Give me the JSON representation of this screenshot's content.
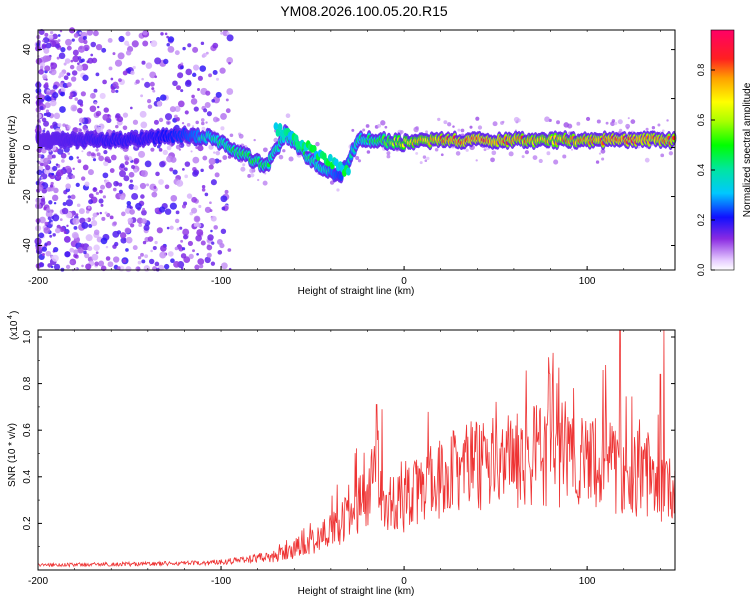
{
  "title": "YM08.2026.100.05.20.R15",
  "chart_data": [
    {
      "type": "heatmap",
      "xlabel": "Height of straight line (km)",
      "ylabel": "Frequency (Hz)",
      "xlim": [
        -200,
        148
      ],
      "ylim": [
        -50,
        48
      ],
      "x_ticks": [
        -200,
        -100,
        0,
        100
      ],
      "x_tick_labels": [
        "-200",
        "-100",
        "0",
        "100"
      ],
      "y_ticks": [
        40,
        20,
        0,
        -20,
        -40
      ],
      "y_tick_labels": [
        "40",
        "20",
        "0",
        "-20",
        "-40"
      ],
      "colorbar": {
        "label": "Normalized spectral amplitude",
        "range": [
          0,
          0.96
        ],
        "ticks": [
          0.0,
          0.2,
          0.4,
          0.6,
          0.8
        ],
        "tick_labels": [
          "0.0",
          "0.2",
          "0.4",
          "0.6",
          "0.8"
        ]
      },
      "ridge": [
        {
          "x": -200,
          "f": 3,
          "amp": 0.22
        },
        {
          "x": -180,
          "f": 3,
          "amp": 0.25
        },
        {
          "x": -160,
          "f": 3,
          "amp": 0.28
        },
        {
          "x": -140,
          "f": 4,
          "amp": 0.28
        },
        {
          "x": -120,
          "f": 5,
          "amp": 0.35
        },
        {
          "x": -105,
          "f": 4,
          "amp": 0.45
        },
        {
          "x": -95,
          "f": 0,
          "amp": 0.5
        },
        {
          "x": -85,
          "f": -4,
          "amp": 0.55
        },
        {
          "x": -75,
          "f": -8,
          "amp": 0.5
        },
        {
          "x": -65,
          "f": 6,
          "amp": 0.45
        },
        {
          "x": -55,
          "f": -2,
          "amp": 0.5
        },
        {
          "x": -45,
          "f": -8,
          "amp": 0.45
        },
        {
          "x": -35,
          "f": -12,
          "amp": 0.35
        },
        {
          "x": -25,
          "f": 3,
          "amp": 0.45
        },
        {
          "x": -15,
          "f": 3,
          "amp": 0.55
        },
        {
          "x": 0,
          "f": 2,
          "amp": 0.75
        },
        {
          "x": 20,
          "f": 3,
          "amp": 0.85
        },
        {
          "x": 40,
          "f": 3,
          "amp": 0.9
        },
        {
          "x": 60,
          "f": 3,
          "amp": 0.85
        },
        {
          "x": 80,
          "f": 3,
          "amp": 0.8
        },
        {
          "x": 100,
          "f": 3,
          "amp": 0.85
        },
        {
          "x": 120,
          "f": 3,
          "amp": 0.9
        },
        {
          "x": 148,
          "f": 3,
          "amp": 0.85
        }
      ]
    },
    {
      "type": "line",
      "xlabel": "Height of straight line (km)",
      "ylabel": "SNR (10 * v/v)",
      "multiplier_label": "(x10",
      "multiplier_exponent": "4",
      "xlim": [
        -200,
        148
      ],
      "ylim": [
        0,
        1.03
      ],
      "x_ticks": [
        -200,
        -100,
        0,
        100
      ],
      "x_tick_labels": [
        "-200",
        "-100",
        "0",
        "100"
      ],
      "y_ticks": [
        0.2,
        0.4,
        0.6,
        0.8,
        1.0
      ],
      "y_tick_labels": [
        "0.2",
        "0.4",
        "0.6",
        "0.8",
        "1.0"
      ],
      "color": "#ee3333",
      "series": [
        {
          "name": "SNR",
          "x": [
            -200,
            -150,
            -110,
            -90,
            -70,
            -55,
            -40,
            -30,
            -20,
            -15,
            -10,
            0,
            10,
            20,
            30,
            40,
            50,
            60,
            70,
            80,
            90,
            100,
            110,
            120,
            130,
            140,
            148
          ],
          "envelope": [
            0.025,
            0.03,
            0.035,
            0.05,
            0.07,
            0.13,
            0.2,
            0.28,
            0.4,
            0.55,
            0.3,
            0.35,
            0.42,
            0.48,
            0.52,
            0.55,
            0.56,
            0.58,
            0.6,
            0.58,
            0.56,
            0.54,
            0.55,
            0.5,
            0.48,
            0.45,
            0.4
          ],
          "peaks": [
            {
              "x": -15,
              "y": 0.71
            },
            {
              "x": -12,
              "y": 0.69
            },
            {
              "x": 110,
              "y": 0.88
            },
            {
              "x": 118,
              "y": 1.03
            },
            {
              "x": 140,
              "y": 0.84
            },
            {
              "x": 142,
              "y": 1.03
            }
          ]
        }
      ]
    }
  ]
}
